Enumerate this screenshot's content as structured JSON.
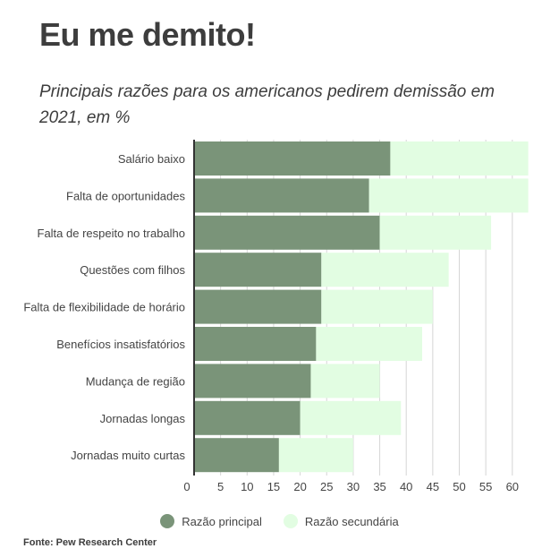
{
  "title": "Eu me demito!",
  "subtitle": "Principais razões para os americanos pedirem demissão em 2021, em %",
  "source": "Fonte: Pew Research Center",
  "colors": {
    "primary": "#7a9479",
    "secondary": "#e2fde2",
    "grid": "#d6d6d6",
    "axis": "#333333"
  },
  "chart_data": {
    "type": "bar",
    "orientation": "horizontal",
    "stacked": true,
    "categories": [
      "Salário baixo",
      "Falta de oportunidades",
      "Falta de respeito no trabalho",
      "Questões com filhos",
      "Falta de flexibilidade de horário",
      "Benefícios insatisfatórios",
      "Mudança de região",
      "Jornadas longas",
      "Jornadas muito curtas"
    ],
    "series": [
      {
        "name": "Razão principal",
        "values": [
          37,
          33,
          35,
          24,
          24,
          23,
          22,
          20,
          16
        ]
      },
      {
        "name": "Razão secundária",
        "values": [
          26,
          30,
          21,
          24,
          21,
          20,
          13,
          19,
          14
        ]
      }
    ],
    "xticks": [
      0,
      5,
      10,
      15,
      20,
      25,
      30,
      35,
      40,
      45,
      50,
      55,
      60
    ],
    "xlim": [
      0,
      63
    ],
    "grid": true,
    "legend": "bottom"
  }
}
